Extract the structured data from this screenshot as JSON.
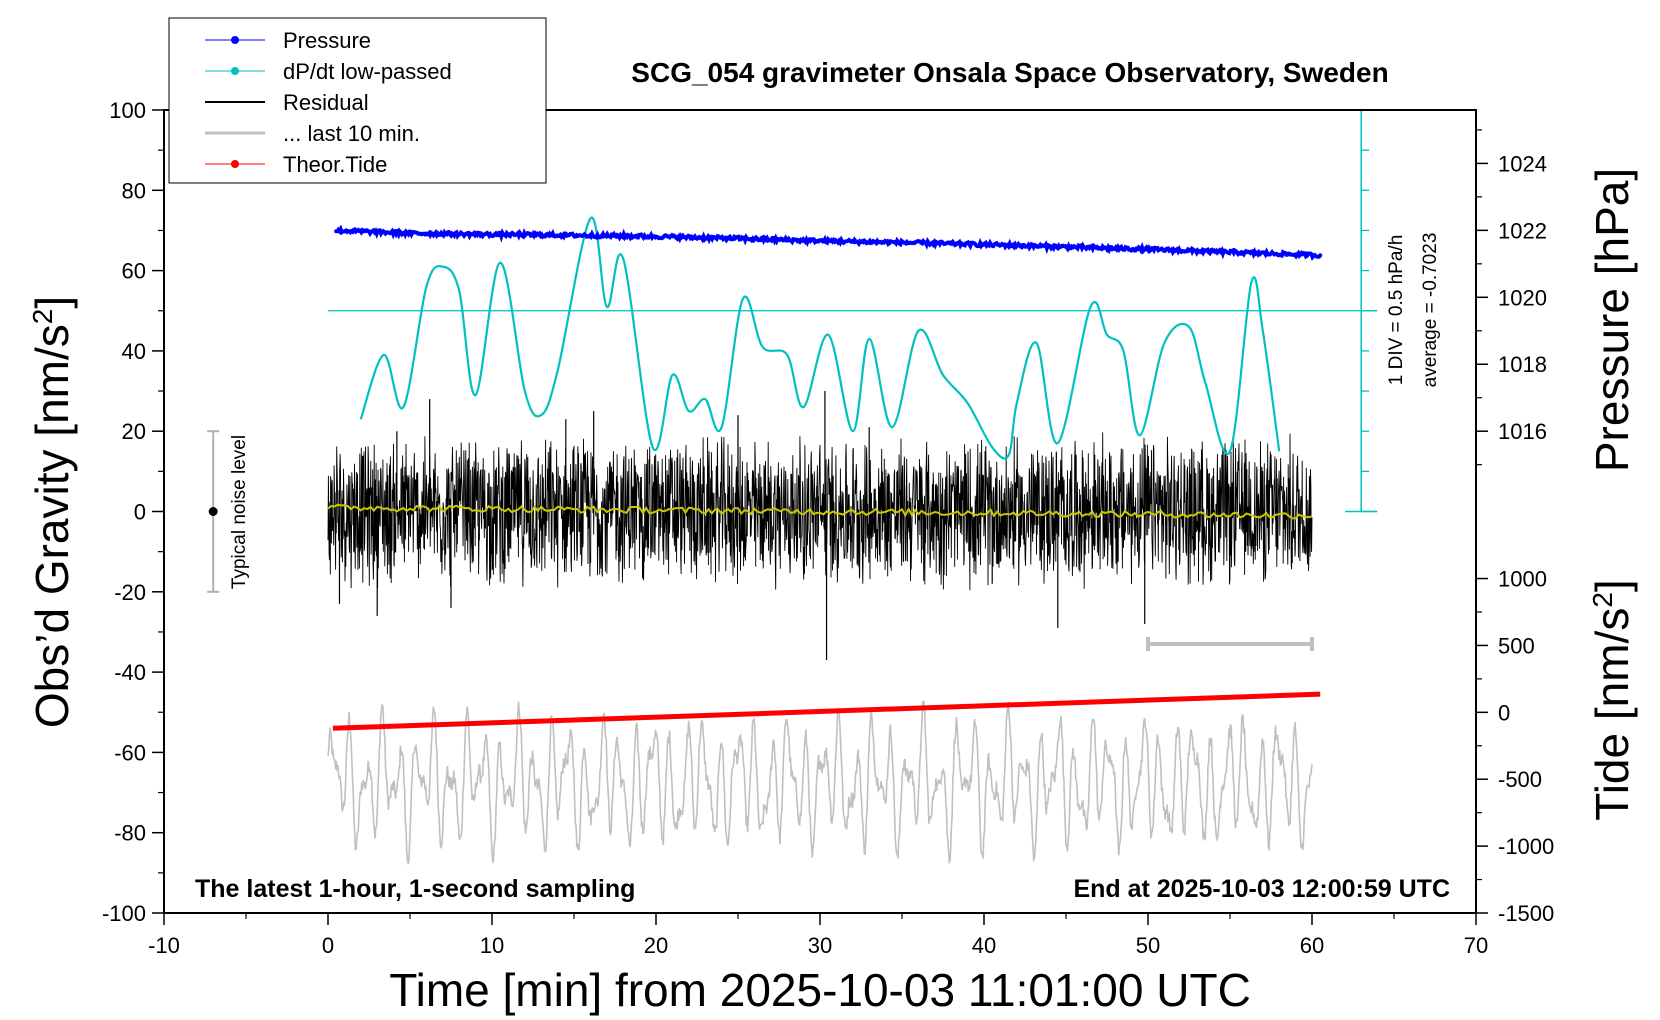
{
  "chart_data": {
    "type": "line",
    "title": "SCG_054 gravimeter Onsala Space Observatory, Sweden",
    "note_left": "The latest 1-hour, 1-second sampling",
    "note_right": "End at 2025-10-03 12:00:59 UTC",
    "xlabel": "Time [min] from 2025-10-03 11:01:00 UTC",
    "xlim": [
      -10,
      70
    ],
    "xticks": [
      -10,
      0,
      10,
      20,
      30,
      40,
      50,
      60,
      70
    ],
    "y_left": {
      "label": "Obs'd Gravity [nm/s²]",
      "label_main": "Obs’d Gravity [nm/s",
      "label_sup": "2",
      "label_end": "]",
      "lim": [
        -100,
        100
      ],
      "ticks": [
        -100,
        -80,
        -60,
        -40,
        -20,
        0,
        20,
        40,
        60,
        80,
        100
      ]
    },
    "y_pressure": {
      "label": "Pressure [hPa]",
      "ticks": [
        1016,
        1018,
        1020,
        1022,
        1024
      ],
      "range_at_gravity": [
        [
          1016,
          20
        ],
        [
          1024,
          86.7
        ]
      ]
    },
    "y_tide": {
      "label": "Tide [nm/s²]",
      "label_main": "Tide [nm/s",
      "label_sup": "2",
      "label_end": "]",
      "ticks": [
        1000,
        500,
        0,
        -500,
        -1000,
        -1500
      ],
      "range_at_gravity": [
        [
          -1500,
          -100
        ],
        [
          1000,
          -16.7
        ]
      ]
    },
    "dpdt_scale": {
      "label_div": "1 DIV = 0.5 hPa/h",
      "label_avg": "average = -0.7023",
      "zero_at": 50,
      "range": [
        0,
        100
      ]
    },
    "noise_level": {
      "label": "Typical noise level",
      "x": -7,
      "range": [
        -20,
        20
      ]
    },
    "last10_marker": {
      "x": [
        50,
        60
      ],
      "y": -33
    },
    "series": [
      {
        "name": "Pressure",
        "color": "#0000ff",
        "x": [
          0.5,
          5,
          10,
          15,
          20,
          25,
          30,
          35,
          40,
          45,
          50,
          55,
          60.5
        ],
        "values": [
          70,
          69.3,
          69,
          68.8,
          68.5,
          68,
          67.4,
          67,
          66.5,
          65.9,
          65.3,
          64.6,
          63.8
        ]
      },
      {
        "name": "dP/dt low-passed",
        "color": "#00c0c0",
        "x": [
          2,
          3.4,
          4.6,
          6,
          7,
          8,
          9,
          10.5,
          12,
          13,
          14,
          16,
          17,
          18,
          19.8,
          21,
          22,
          23,
          24,
          25.3,
          26.5,
          28,
          29,
          30.5,
          32,
          33,
          34.4,
          36,
          37.5,
          39,
          40.5,
          41.5,
          42,
          43.2,
          44.5,
          46.5,
          47.5,
          48.5,
          49.5,
          51,
          52.5,
          53.5,
          55,
          56.3,
          57,
          58
        ],
        "values": [
          23,
          39,
          26,
          56,
          61,
          55,
          29,
          62,
          30,
          24,
          35,
          73,
          51,
          63,
          16,
          34,
          25,
          28,
          21,
          53,
          41,
          39,
          26,
          44,
          20,
          43,
          21,
          45,
          34,
          27,
          16,
          14,
          27,
          42,
          17,
          51,
          44,
          40,
          19,
          42,
          46,
          32,
          15,
          57,
          45,
          15
        ]
      },
      {
        "name": "Residual",
        "color": "#000000",
        "x": [
          0,
          60
        ],
        "values": [
          0,
          0
        ],
        "envelope": [
          -20,
          20
        ],
        "spikes": [
          [
            0.7,
            -23
          ],
          [
            3,
            -26
          ],
          [
            4.2,
            20
          ],
          [
            6.2,
            28
          ],
          [
            7.5,
            -24
          ],
          [
            14.5,
            23
          ],
          [
            16.2,
            25
          ],
          [
            25,
            24
          ],
          [
            30.3,
            30
          ],
          [
            30.4,
            -37
          ],
          [
            33,
            21
          ],
          [
            40.5,
            -18
          ],
          [
            44.5,
            -29
          ],
          [
            49.8,
            -28
          ]
        ]
      },
      {
        "name": "... last 10 min.",
        "color": "#c0c0c0",
        "x": [
          0,
          60
        ],
        "values": [
          -70,
          -70
        ],
        "envelope": [
          -85,
          -50
        ]
      },
      {
        "name": "Theor.Tide",
        "color": "#ff0000",
        "x": [
          0.3,
          60.5
        ],
        "values": [
          -54,
          -45.5
        ]
      },
      {
        "name": "Residual average",
        "color": "#c8c800",
        "x": [
          0,
          60
        ],
        "values": [
          1,
          -1
        ]
      }
    ],
    "legend": {
      "position": "top-left",
      "entries": [
        "Pressure",
        "dP/dt low-passed",
        "Residual",
        "... last 10 min.",
        "Theor.Tide"
      ]
    },
    "grid": false
  }
}
